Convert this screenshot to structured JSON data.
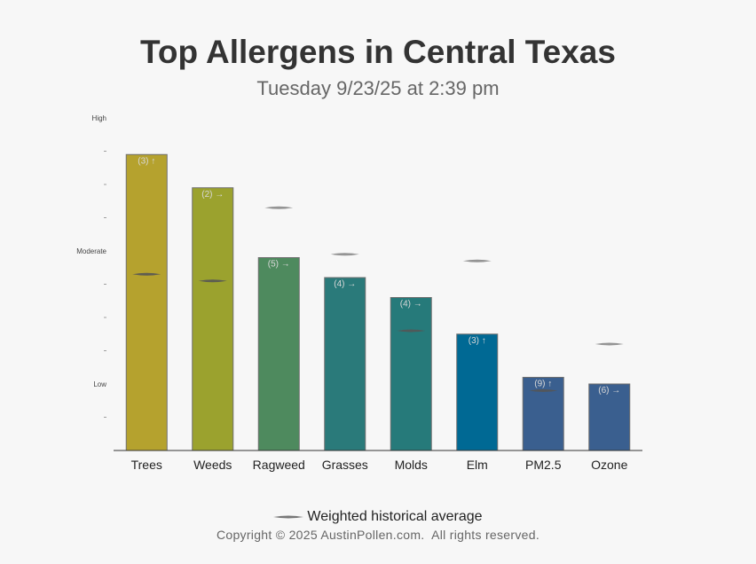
{
  "title": "Top Allergens in Central Texas",
  "subtitle": "Tuesday 9/23/25 at 2:39 pm",
  "legend_label": "Weighted historical average",
  "copyright": "Copyright © 2025 AustinPollen.com.  All rights reserved.",
  "chart_data": {
    "type": "bar",
    "title": "Top Allergens in Central Texas",
    "subtitle": "Tuesday 9/23/25 at 2:39 pm",
    "categories": [
      "Trees",
      "Weeds",
      "Ragweed",
      "Grasses",
      "Molds",
      "Elm",
      "PM2.5",
      "Ozone"
    ],
    "values": [
      8.9,
      7.9,
      5.8,
      5.2,
      4.6,
      3.5,
      2.2,
      2.0
    ],
    "bar_labels": [
      "(3) ↑",
      "(2) →",
      "(5) →",
      "(4) →",
      "(4) →",
      "(3) ↑",
      "(9) ↑",
      "(6) →"
    ],
    "historical_average": [
      5.3,
      5.1,
      7.3,
      5.9,
      3.6,
      5.7,
      1.8,
      3.2
    ],
    "colors": [
      "#b5a22e",
      "#9ba22e",
      "#4e8a5e",
      "#2a7a7a",
      "#267a7a",
      "#006994",
      "#3a5f8f",
      "#3a5f8f"
    ],
    "ylim": [
      0,
      10
    ],
    "y_tick_labels": [
      "Low",
      "Moderate",
      "High"
    ],
    "y_tick_values": [
      2,
      6,
      10
    ],
    "y_minor_ticks": [
      1,
      3,
      4,
      5,
      7,
      8,
      9
    ],
    "grid": false,
    "legend_position": "bottom"
  }
}
